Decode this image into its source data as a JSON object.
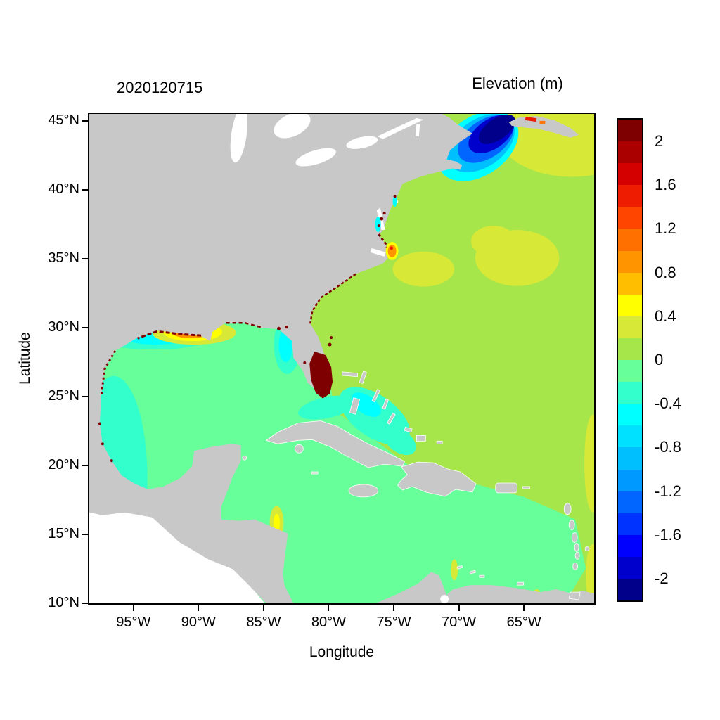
{
  "titles": {
    "date": "2020120715",
    "colorbar": "Elevation (m)"
  },
  "axes": {
    "x": {
      "label": "Longitude",
      "range_degW": [
        98.5,
        59.5
      ],
      "ticks": [
        {
          "value": 95,
          "label": "95°W"
        },
        {
          "value": 90,
          "label": "90°W"
        },
        {
          "value": 85,
          "label": "85°W"
        },
        {
          "value": 80,
          "label": "80°W"
        },
        {
          "value": 75,
          "label": "75°W"
        },
        {
          "value": 70,
          "label": "70°W"
        },
        {
          "value": 65,
          "label": "65°W"
        }
      ]
    },
    "y": {
      "label": "Latitude",
      "range_degN": [
        45.6,
        9.88
      ],
      "ticks": [
        {
          "value": 45,
          "label": "45°N"
        },
        {
          "value": 40,
          "label": "40°N"
        },
        {
          "value": 35,
          "label": "35°N"
        },
        {
          "value": 30,
          "label": "30°N"
        },
        {
          "value": 25,
          "label": "25°N"
        },
        {
          "value": 20,
          "label": "20°N"
        },
        {
          "value": 15,
          "label": "15°N"
        },
        {
          "value": 10,
          "label": "10°N"
        }
      ]
    }
  },
  "colorbar": {
    "value_min": -2.2,
    "value_max": 2.2,
    "band_step": 0.2,
    "colors_top_to_bottom": [
      "#7F0000",
      "#AA0000",
      "#D40000",
      "#EE1C00",
      "#FF4500",
      "#FF7000",
      "#FF9400",
      "#FFBE00",
      "#FFFF00",
      "#D7E837",
      "#A6E64B",
      "#66FF99",
      "#33FFCC",
      "#00FFFF",
      "#00E0FF",
      "#00BFFF",
      "#0099FF",
      "#0066FF",
      "#0033FF",
      "#0000FF",
      "#0000CD",
      "#00008B"
    ],
    "ticks": [
      {
        "value": 2,
        "label": "2"
      },
      {
        "value": 1.6,
        "label": "1.6"
      },
      {
        "value": 1.2,
        "label": "1.2"
      },
      {
        "value": 0.8,
        "label": "0.8"
      },
      {
        "value": 0.4,
        "label": "0.4"
      },
      {
        "value": 0,
        "label": "0"
      },
      {
        "value": -0.4,
        "label": "-0.4"
      },
      {
        "value": -0.8,
        "label": "-0.8"
      },
      {
        "value": -1.2,
        "label": "-1.2"
      },
      {
        "value": -1.6,
        "label": "-1.6"
      },
      {
        "value": -2,
        "label": "-2"
      }
    ]
  },
  "map": {
    "land_color": "#C8C8C8",
    "no_data_color": "#FFFFFF"
  },
  "chart_data": {
    "type": "heatmap",
    "title": "2020120715",
    "colorbar_title": "Elevation (m)",
    "xlabel": "Longitude",
    "ylabel": "Latitude",
    "x_ticks": [
      "95°W",
      "90°W",
      "85°W",
      "80°W",
      "75°W",
      "70°W",
      "65°W"
    ],
    "y_ticks": [
      "10°N",
      "15°N",
      "20°N",
      "25°N",
      "30°N",
      "35°N",
      "40°N",
      "45°N"
    ],
    "x_range_degW": [
      98.5,
      59.5
    ],
    "y_range_degN": [
      9.9,
      45.6
    ],
    "value_range_m": [
      -2.2,
      2.2
    ],
    "legend_position": "right-colorbar",
    "regions": [
      {
        "name": "open-atlantic",
        "approx_elevation_m": 0.1
      },
      {
        "name": "gulf-of-mexico",
        "approx_elevation_m": -0.1
      },
      {
        "name": "caribbean-sea",
        "approx_elevation_m": -0.1
      },
      {
        "name": "western-gulf-of-mexico",
        "approx_elevation_m": -0.3
      },
      {
        "name": "texas-louisiana-shelf",
        "approx_elevation_m": -0.5
      },
      {
        "name": "west-florida-shelf",
        "approx_elevation_m": -0.5
      },
      {
        "name": "bahamas-banks-straits",
        "approx_elevation_m": -0.5
      },
      {
        "name": "sargasso-sea-patches",
        "approx_elevation_m": 0.3
      },
      {
        "name": "northeast-corner-scotian-shelf",
        "approx_elevation_m": 0.3
      },
      {
        "name": "gulf-of-maine-bay-of-fundy",
        "approx_elevation_m": -2.2
      },
      {
        "name": "south-florida-coast",
        "approx_elevation_m": 2.2
      },
      {
        "name": "louisiana-coast",
        "approx_elevation_m": 1.0
      },
      {
        "name": "cape-hatteras-coast",
        "approx_elevation_m": 0.9
      },
      {
        "name": "scattered-coastal-fringe",
        "approx_elevation_m": 2.0
      }
    ]
  }
}
